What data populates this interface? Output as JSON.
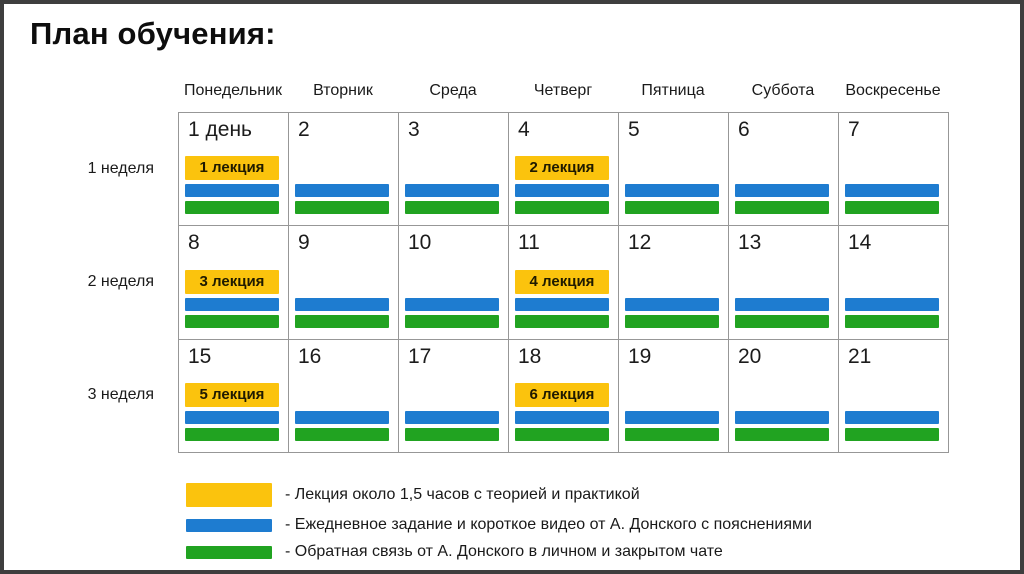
{
  "title": "План обучения:",
  "colors": {
    "lecture": "#FBC30D",
    "task": "#1E7CD0",
    "feedback": "#21A321",
    "grid_line": "#979797",
    "slide_border": "#3e3e3e"
  },
  "calendar": {
    "day_headers": [
      "Понедельник",
      "Вторник",
      "Среда",
      "Четверг",
      "Пятница",
      "Суббота",
      "Воскресенье"
    ],
    "weeks": [
      {
        "label": "1 неделя",
        "days": [
          {
            "num": "1 день",
            "lecture": "1 лекция",
            "bars": [
              "task",
              "feedback"
            ]
          },
          {
            "num": "2",
            "lecture": null,
            "bars": [
              "task",
              "feedback"
            ]
          },
          {
            "num": "3",
            "lecture": null,
            "bars": [
              "task",
              "feedback"
            ]
          },
          {
            "num": "4",
            "lecture": "2 лекция",
            "bars": [
              "task",
              "feedback"
            ]
          },
          {
            "num": "5",
            "lecture": null,
            "bars": [
              "task",
              "feedback"
            ]
          },
          {
            "num": "6",
            "lecture": null,
            "bars": [
              "task",
              "feedback"
            ]
          },
          {
            "num": "7",
            "lecture": null,
            "bars": [
              "task",
              "feedback"
            ]
          }
        ]
      },
      {
        "label": "2 неделя",
        "days": [
          {
            "num": "8",
            "lecture": "3 лекция",
            "bars": [
              "task",
              "feedback"
            ]
          },
          {
            "num": "9",
            "lecture": null,
            "bars": [
              "task",
              "feedback"
            ]
          },
          {
            "num": "10",
            "lecture": null,
            "bars": [
              "task",
              "feedback"
            ]
          },
          {
            "num": "11",
            "lecture": "4 лекция",
            "bars": [
              "task",
              "feedback"
            ]
          },
          {
            "num": "12",
            "lecture": null,
            "bars": [
              "task",
              "feedback"
            ]
          },
          {
            "num": "13",
            "lecture": null,
            "bars": [
              "task",
              "feedback"
            ]
          },
          {
            "num": "14",
            "lecture": null,
            "bars": [
              "task",
              "feedback"
            ]
          }
        ]
      },
      {
        "label": "3 неделя",
        "days": [
          {
            "num": "15",
            "lecture": "5 лекция",
            "bars": [
              "task",
              "feedback"
            ]
          },
          {
            "num": "16",
            "lecture": null,
            "bars": [
              "task",
              "feedback"
            ]
          },
          {
            "num": "17",
            "lecture": null,
            "bars": [
              "task",
              "feedback"
            ]
          },
          {
            "num": "18",
            "lecture": "6 лекция",
            "bars": [
              "task",
              "feedback"
            ]
          },
          {
            "num": "19",
            "lecture": null,
            "bars": [
              "task",
              "feedback"
            ]
          },
          {
            "num": "20",
            "lecture": null,
            "bars": [
              "task",
              "feedback"
            ]
          },
          {
            "num": "21",
            "lecture": null,
            "bars": [
              "task",
              "feedback"
            ]
          }
        ]
      }
    ]
  },
  "legend": [
    {
      "type": "lecture",
      "text": "- Лекция около 1,5 часов с теорией и практикой"
    },
    {
      "type": "task",
      "text": "- Ежедневное задание и короткое видео от А. Донского с пояснениями"
    },
    {
      "type": "feedback",
      "text": "- Обратная связь от А. Донского в личном и закрытом чате"
    }
  ]
}
